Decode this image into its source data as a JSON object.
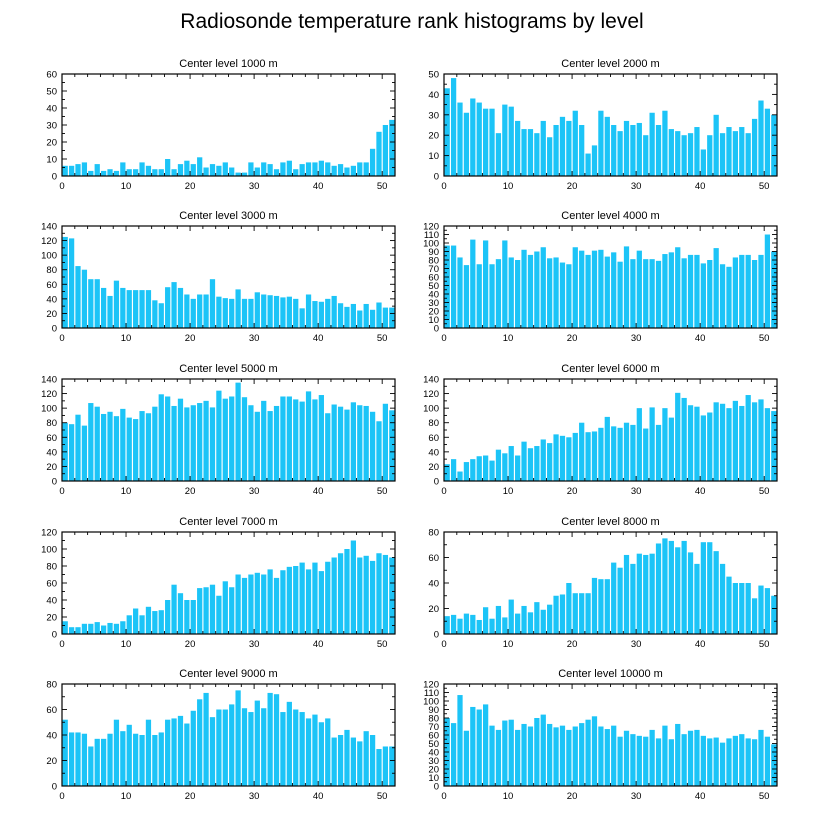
{
  "figure": {
    "title": "Radiosonde temperature rank histograms by level"
  },
  "colors": {
    "bar": "#1cc4f7",
    "axis": "#000000"
  },
  "chart_data": [
    {
      "type": "bar",
      "title": "Center level 1000 m",
      "x": [
        0,
        1,
        2,
        3,
        4,
        5,
        6,
        7,
        8,
        9,
        10,
        11,
        12,
        13,
        14,
        15,
        16,
        17,
        18,
        19,
        20,
        21,
        22,
        23,
        24,
        25,
        26,
        27,
        28,
        29,
        30,
        31,
        32,
        33,
        34,
        35,
        36,
        37,
        38,
        39,
        40,
        41,
        42,
        43,
        44,
        45,
        46,
        47,
        48,
        49,
        50,
        51
      ],
      "values": [
        6,
        6,
        7,
        8,
        3,
        7,
        3,
        4,
        3,
        8,
        4,
        4,
        8,
        6,
        4,
        4,
        10,
        4,
        7,
        9,
        7,
        11,
        5,
        7,
        6,
        8,
        5,
        2,
        2,
        8,
        5,
        8,
        7,
        4,
        8,
        9,
        4,
        7,
        8,
        8,
        9,
        8,
        6,
        7,
        5,
        6,
        8,
        8,
        16,
        26,
        30,
        33
      ],
      "xlim": [
        0,
        52
      ],
      "ylim": [
        0,
        60
      ],
      "xticks": [
        0,
        10,
        20,
        30,
        40,
        50
      ],
      "yticks": [
        0,
        10,
        20,
        30,
        40,
        50,
        60
      ]
    },
    {
      "type": "bar",
      "title": "Center level 2000 m",
      "x": [
        0,
        1,
        2,
        3,
        4,
        5,
        6,
        7,
        8,
        9,
        10,
        11,
        12,
        13,
        14,
        15,
        16,
        17,
        18,
        19,
        20,
        21,
        22,
        23,
        24,
        25,
        26,
        27,
        28,
        29,
        30,
        31,
        32,
        33,
        34,
        35,
        36,
        37,
        38,
        39,
        40,
        41,
        42,
        43,
        44,
        45,
        46,
        47,
        48,
        49,
        50,
        51
      ],
      "values": [
        43,
        48,
        36,
        31,
        38,
        36,
        33,
        33,
        21,
        35,
        34,
        27,
        23,
        23,
        21,
        27,
        19,
        25,
        29,
        27,
        32,
        25,
        11,
        15,
        32,
        29,
        25,
        22,
        27,
        25,
        26,
        20,
        31,
        25,
        32,
        23,
        22,
        20,
        21,
        24,
        13,
        20,
        30,
        21,
        24,
        22,
        24,
        21,
        28,
        37,
        33,
        30
      ],
      "xlim": [
        0,
        52
      ],
      "ylim": [
        0,
        50
      ],
      "xticks": [
        0,
        10,
        20,
        30,
        40,
        50
      ],
      "yticks": [
        0,
        10,
        20,
        30,
        40,
        50
      ]
    },
    {
      "type": "bar",
      "title": "Center level 3000 m",
      "x": [
        0,
        1,
        2,
        3,
        4,
        5,
        6,
        7,
        8,
        9,
        10,
        11,
        12,
        13,
        14,
        15,
        16,
        17,
        18,
        19,
        20,
        21,
        22,
        23,
        24,
        25,
        26,
        27,
        28,
        29,
        30,
        31,
        32,
        33,
        34,
        35,
        36,
        37,
        38,
        39,
        40,
        41,
        42,
        43,
        44,
        45,
        46,
        47,
        48,
        49,
        50,
        51
      ],
      "values": [
        125,
        123,
        85,
        80,
        67,
        67,
        55,
        44,
        65,
        55,
        52,
        52,
        52,
        52,
        38,
        34,
        56,
        63,
        55,
        46,
        40,
        46,
        46,
        67,
        43,
        41,
        40,
        53,
        40,
        40,
        49,
        46,
        45,
        44,
        42,
        43,
        40,
        27,
        46,
        37,
        36,
        40,
        44,
        34,
        29,
        33,
        24,
        33,
        25,
        35,
        28,
        28
      ],
      "xlim": [
        0,
        52
      ],
      "ylim": [
        0,
        140
      ],
      "xticks": [
        0,
        10,
        20,
        30,
        40,
        50
      ],
      "yticks": [
        0,
        20,
        40,
        60,
        80,
        100,
        120,
        140
      ]
    },
    {
      "type": "bar",
      "title": "Center level 4000 m",
      "x": [
        0,
        1,
        2,
        3,
        4,
        5,
        6,
        7,
        8,
        9,
        10,
        11,
        12,
        13,
        14,
        15,
        16,
        17,
        18,
        19,
        20,
        21,
        22,
        23,
        24,
        25,
        26,
        27,
        28,
        29,
        30,
        31,
        32,
        33,
        34,
        35,
        36,
        37,
        38,
        39,
        40,
        41,
        42,
        43,
        44,
        45,
        46,
        47,
        48,
        49,
        50,
        51
      ],
      "values": [
        97,
        97,
        83,
        74,
        104,
        75,
        103,
        75,
        81,
        103,
        83,
        80,
        92,
        86,
        90,
        95,
        82,
        83,
        77,
        75,
        95,
        91,
        86,
        91,
        92,
        84,
        89,
        78,
        96,
        81,
        91,
        81,
        81,
        79,
        87,
        89,
        95,
        82,
        86,
        86,
        76,
        80,
        94,
        75,
        72,
        83,
        86,
        86,
        80,
        86,
        110,
        90
      ],
      "xlim": [
        0,
        52
      ],
      "ylim": [
        0,
        120
      ],
      "xticks": [
        0,
        10,
        20,
        30,
        40,
        50
      ],
      "yticks": [
        0,
        10,
        20,
        30,
        40,
        50,
        60,
        70,
        80,
        90,
        100,
        110,
        120
      ]
    },
    {
      "type": "bar",
      "title": "Center level 5000 m",
      "x": [
        0,
        1,
        2,
        3,
        4,
        5,
        6,
        7,
        8,
        9,
        10,
        11,
        12,
        13,
        14,
        15,
        16,
        17,
        18,
        19,
        20,
        21,
        22,
        23,
        24,
        25,
        26,
        27,
        28,
        29,
        30,
        31,
        32,
        33,
        34,
        35,
        36,
        37,
        38,
        39,
        40,
        41,
        42,
        43,
        44,
        45,
        46,
        47,
        48,
        49,
        50,
        51
      ],
      "values": [
        80,
        78,
        91,
        76,
        107,
        102,
        92,
        95,
        89,
        99,
        87,
        85,
        96,
        93,
        102,
        119,
        116,
        103,
        113,
        101,
        104,
        107,
        110,
        101,
        124,
        113,
        116,
        135,
        115,
        104,
        95,
        110,
        96,
        103,
        116,
        116,
        112,
        109,
        123,
        112,
        118,
        93,
        105,
        102,
        98,
        108,
        104,
        103,
        95,
        82,
        106,
        97
      ],
      "xlim": [
        0,
        52
      ],
      "ylim": [
        0,
        140
      ],
      "xticks": [
        0,
        10,
        20,
        30,
        40,
        50
      ],
      "yticks": [
        0,
        20,
        40,
        60,
        80,
        100,
        120,
        140
      ]
    },
    {
      "type": "bar",
      "title": "Center level 6000 m",
      "x": [
        0,
        1,
        2,
        3,
        4,
        5,
        6,
        7,
        8,
        9,
        10,
        11,
        12,
        13,
        14,
        15,
        16,
        17,
        18,
        19,
        20,
        21,
        22,
        23,
        24,
        25,
        26,
        27,
        28,
        29,
        30,
        31,
        32,
        33,
        34,
        35,
        36,
        37,
        38,
        39,
        40,
        41,
        42,
        43,
        44,
        45,
        46,
        47,
        48,
        49,
        50,
        51
      ],
      "values": [
        23,
        30,
        13,
        26,
        30,
        34,
        35,
        28,
        43,
        38,
        48,
        35,
        54,
        45,
        48,
        57,
        52,
        64,
        62,
        60,
        66,
        80,
        67,
        68,
        73,
        88,
        75,
        73,
        80,
        77,
        100,
        72,
        101,
        77,
        100,
        87,
        121,
        114,
        104,
        102,
        90,
        94,
        108,
        106,
        100,
        110,
        103,
        118,
        108,
        112,
        100,
        96
      ],
      "xlim": [
        0,
        52
      ],
      "ylim": [
        0,
        140
      ],
      "xticks": [
        0,
        10,
        20,
        30,
        40,
        50
      ],
      "yticks": [
        0,
        20,
        40,
        60,
        80,
        100,
        120,
        140
      ]
    },
    {
      "type": "bar",
      "title": "Center level 7000 m",
      "x": [
        0,
        1,
        2,
        3,
        4,
        5,
        6,
        7,
        8,
        9,
        10,
        11,
        12,
        13,
        14,
        15,
        16,
        17,
        18,
        19,
        20,
        21,
        22,
        23,
        24,
        25,
        26,
        27,
        28,
        29,
        30,
        31,
        32,
        33,
        34,
        35,
        36,
        37,
        38,
        39,
        40,
        41,
        42,
        43,
        44,
        45,
        46,
        47,
        48,
        49,
        50,
        51
      ],
      "values": [
        15,
        8,
        8,
        12,
        12,
        14,
        10,
        13,
        12,
        15,
        22,
        30,
        22,
        32,
        27,
        28,
        40,
        58,
        48,
        40,
        40,
        54,
        55,
        58,
        45,
        62,
        55,
        70,
        66,
        70,
        72,
        70,
        76,
        66,
        75,
        79,
        80,
        84,
        76,
        84,
        74,
        85,
        90,
        95,
        100,
        110,
        90,
        92,
        86,
        95,
        93,
        90
      ],
      "xlim": [
        0,
        52
      ],
      "ylim": [
        0,
        120
      ],
      "xticks": [
        0,
        10,
        20,
        30,
        40,
        50
      ],
      "yticks": [
        0,
        20,
        40,
        60,
        80,
        100,
        120
      ]
    },
    {
      "type": "bar",
      "title": "Center level 8000 m",
      "x": [
        0,
        1,
        2,
        3,
        4,
        5,
        6,
        7,
        8,
        9,
        10,
        11,
        12,
        13,
        14,
        15,
        16,
        17,
        18,
        19,
        20,
        21,
        22,
        23,
        24,
        25,
        26,
        27,
        28,
        29,
        30,
        31,
        32,
        33,
        34,
        35,
        36,
        37,
        38,
        39,
        40,
        41,
        42,
        43,
        44,
        45,
        46,
        47,
        48,
        49,
        50,
        51
      ],
      "values": [
        14,
        15,
        12,
        16,
        15,
        11,
        21,
        12,
        22,
        13,
        27,
        16,
        22,
        17,
        25,
        19,
        23,
        30,
        31,
        40,
        32,
        32,
        32,
        44,
        43,
        43,
        56,
        52,
        62,
        55,
        63,
        62,
        63,
        71,
        75,
        73,
        68,
        73,
        64,
        55,
        72,
        72,
        65,
        55,
        45,
        40,
        40,
        40,
        28,
        38,
        36,
        30
      ],
      "xlim": [
        0,
        52
      ],
      "ylim": [
        0,
        80
      ],
      "xticks": [
        0,
        10,
        20,
        30,
        40,
        50
      ],
      "yticks": [
        0,
        20,
        40,
        60,
        80
      ]
    },
    {
      "type": "bar",
      "title": "Center level 9000 m",
      "x": [
        0,
        1,
        2,
        3,
        4,
        5,
        6,
        7,
        8,
        9,
        10,
        11,
        12,
        13,
        14,
        15,
        16,
        17,
        18,
        19,
        20,
        21,
        22,
        23,
        24,
        25,
        26,
        27,
        28,
        29,
        30,
        31,
        32,
        33,
        34,
        35,
        36,
        37,
        38,
        39,
        40,
        41,
        42,
        43,
        44,
        45,
        46,
        47,
        48,
        49,
        50,
        51
      ],
      "values": [
        52,
        42,
        42,
        41,
        31,
        37,
        37,
        41,
        52,
        43,
        48,
        41,
        40,
        52,
        40,
        42,
        52,
        53,
        55,
        49,
        59,
        68,
        73,
        54,
        60,
        60,
        64,
        75,
        61,
        58,
        67,
        61,
        73,
        72,
        58,
        66,
        60,
        58,
        53,
        56,
        50,
        53,
        38,
        40,
        44,
        38,
        35,
        43,
        40,
        29,
        31,
        31
      ],
      "xlim": [
        0,
        52
      ],
      "ylim": [
        0,
        80
      ],
      "xticks": [
        0,
        10,
        20,
        30,
        40,
        50
      ],
      "yticks": [
        0,
        20,
        40,
        60,
        80
      ]
    },
    {
      "type": "bar",
      "title": "Center level 10000 m",
      "x": [
        0,
        1,
        2,
        3,
        4,
        5,
        6,
        7,
        8,
        9,
        10,
        11,
        12,
        13,
        14,
        15,
        16,
        17,
        18,
        19,
        20,
        21,
        22,
        23,
        24,
        25,
        26,
        27,
        28,
        29,
        30,
        31,
        32,
        33,
        34,
        35,
        36,
        37,
        38,
        39,
        40,
        41,
        42,
        43,
        44,
        45,
        46,
        47,
        48,
        49,
        50,
        51
      ],
      "values": [
        80,
        74,
        107,
        65,
        93,
        90,
        96,
        71,
        66,
        77,
        78,
        66,
        73,
        70,
        80,
        84,
        73,
        69,
        71,
        66,
        70,
        74,
        78,
        82,
        70,
        67,
        71,
        58,
        65,
        61,
        59,
        58,
        66,
        56,
        71,
        55,
        73,
        61,
        65,
        66,
        59,
        56,
        57,
        51,
        56,
        59,
        61,
        56,
        55,
        66,
        58,
        49
      ],
      "xlim": [
        0,
        52
      ],
      "ylim": [
        0,
        120
      ],
      "xticks": [
        0,
        10,
        20,
        30,
        40,
        50
      ],
      "yticks": [
        0,
        10,
        20,
        30,
        40,
        50,
        60,
        70,
        80,
        90,
        100,
        110,
        120
      ]
    }
  ]
}
